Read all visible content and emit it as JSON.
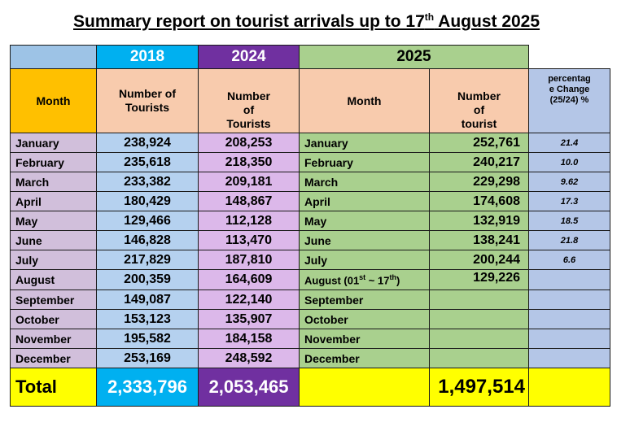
{
  "title": {
    "text": "Summary report on tourist arrivals up to 17",
    "sup": "th",
    "rest": " August 2025"
  },
  "years": {
    "y2018": "2018",
    "y2024": "2024",
    "y2025": "2025"
  },
  "headers": {
    "month": "Month",
    "tourists_2018": "Number of Tourists",
    "tourists_2024_l1": "Number",
    "tourists_2024_l2": "of",
    "tourists_2024_l3": "Tourists",
    "month_2025": "Month",
    "tourist_2025_l1": "Number",
    "tourist_2025_l2": "of",
    "tourist_2025_l3": "tourist",
    "pct_l1": "percentag",
    "pct_l2": "e Change",
    "pct_l3": "(25/24) %"
  },
  "rows": [
    {
      "month": "January",
      "v2018": "238,924",
      "v2024": "208,253",
      "month25": "January",
      "v2025": "252,761",
      "pct": "21.4"
    },
    {
      "month": "February",
      "v2018": "235,618",
      "v2024": "218,350",
      "month25": "February",
      "v2025": "240,217",
      "pct": "10.0"
    },
    {
      "month": "March",
      "v2018": "233,382",
      "v2024": "209,181",
      "month25": "March",
      "v2025": "229,298",
      "pct": "9.62"
    },
    {
      "month": "April",
      "v2018": "180,429",
      "v2024": "148,867",
      "month25": "April",
      "v2025": "174,608",
      "pct": "17.3"
    },
    {
      "month": "May",
      "v2018": "129,466",
      "v2024": "112,128",
      "month25": "May",
      "v2025": "132,919",
      "pct": "18.5"
    },
    {
      "month": "June",
      "v2018": "146,828",
      "v2024": "113,470",
      "month25": "June",
      "v2025": "138,241",
      "pct": "21.8"
    },
    {
      "month": "July",
      "v2018": "217,829",
      "v2024": "187,810",
      "month25": "July",
      "v2025": "200,244",
      "pct": "6.6"
    },
    {
      "month": "August",
      "v2018": "200,359",
      "v2024": "164,609",
      "month25": "August (01",
      "month25_sup1": "st",
      "month25_mid": " ~ 17",
      "month25_sup2": "th",
      "month25_end": ")",
      "v2025": "129,226",
      "pct": ""
    },
    {
      "month": "September",
      "v2018": "149,087",
      "v2024": "122,140",
      "month25": "September",
      "v2025": "",
      "pct": ""
    },
    {
      "month": "October",
      "v2018": "153,123",
      "v2024": "135,907",
      "month25": "October",
      "v2025": "",
      "pct": ""
    },
    {
      "month": "November",
      "v2018": "195,582",
      "v2024": "184,158",
      "month25": "November",
      "v2025": "",
      "pct": ""
    },
    {
      "month": "December",
      "v2018": "253,169",
      "v2024": "248,592",
      "month25": "December",
      "v2025": "",
      "pct": ""
    }
  ],
  "total": {
    "label": "Total",
    "v2018": "2,333,796",
    "v2024": "2,053,465",
    "v2025": "1,497,514"
  }
}
